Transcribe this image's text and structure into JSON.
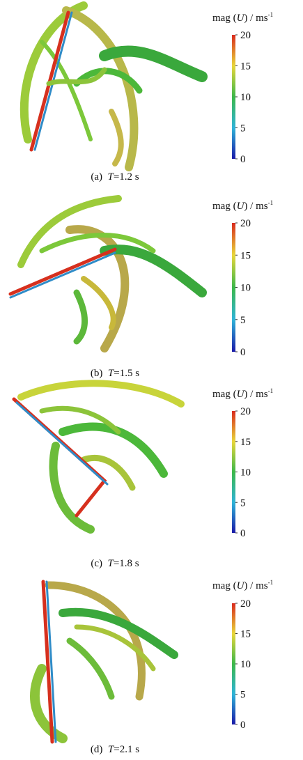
{
  "colorbar": {
    "title": {
      "prefix": "mag (",
      "var": "U",
      "suffix": ") / ms",
      "sup": "-1"
    },
    "range": [
      0,
      20
    ],
    "ticks": [
      0,
      5,
      10,
      15,
      20
    ]
  },
  "panels": [
    {
      "label": "(a)",
      "var": "T",
      "time": "=1.2 s"
    },
    {
      "label": "(b)",
      "var": "T",
      "time": "=1.5 s"
    },
    {
      "label": "(c)",
      "var": "T",
      "time": "=1.8 s"
    },
    {
      "label": "(d)",
      "var": "T",
      "time": "=2.1 s"
    }
  ]
}
